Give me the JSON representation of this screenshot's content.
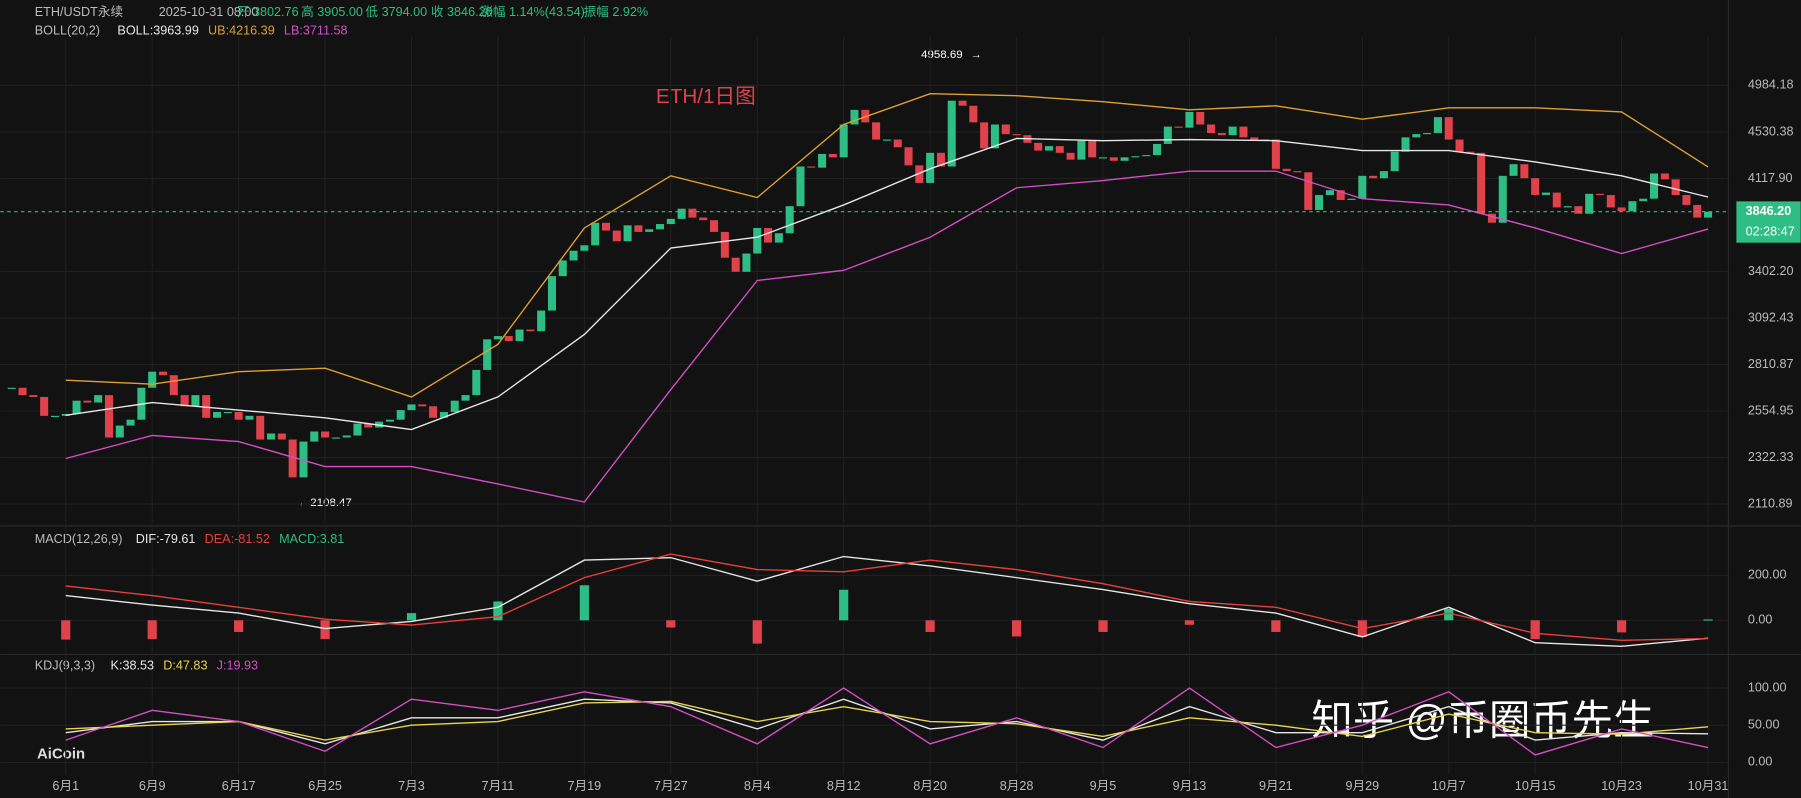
{
  "header": {
    "symbol": "ETH/USDT永续",
    "time": "2025-10-31 08:00",
    "open": "开 3802.76",
    "high": "高 3905.00",
    "low": "低 3794.00",
    "close": "收 3846.20",
    "change": "涨幅 1.14%(43.54)",
    "amplitude": "振幅 2.92%"
  },
  "watermark": "知乎 @币圈币先生",
  "brand": "AiCoin",
  "chart_data": [
    {
      "type": "candlestick",
      "title": "ETH/1日图",
      "indicator": "BOLL(20,2)",
      "high_label": "4958.69",
      "low_label": "2108.47",
      "last_price": {
        "value": 3846.2,
        "label": "3846.20"
      },
      "countdown": "02:28:47",
      "up_color": "#2ebd85",
      "down_color": "#e0424c",
      "log_scale": true,
      "grid": true,
      "ylim": [
        2033,
        5430
      ],
      "yticks": [
        4984.18,
        {
          "value": 4530.38,
          "label": "4530.38"
        },
        {
          "value": 4117.9,
          "label": "4117.90"
        },
        {
          "value": 3402.2,
          "label": "3402.20"
        },
        3092.43,
        2810.87,
        2554.95,
        2322.33,
        2110.89
      ],
      "xticks": [
        {
          "value": 5,
          "label": "6月1"
        },
        {
          "value": 13,
          "label": "6月9"
        },
        {
          "value": 21,
          "label": "6月17"
        },
        {
          "value": 29,
          "label": "6月25"
        },
        {
          "value": 37,
          "label": "7月3"
        },
        {
          "value": 45,
          "label": "7月11"
        },
        {
          "value": 53,
          "label": "7月19"
        },
        {
          "value": 61,
          "label": "7月27"
        },
        {
          "value": 69,
          "label": "8月4"
        },
        {
          "value": 77,
          "label": "8月12"
        },
        {
          "value": 85,
          "label": "8月20"
        },
        {
          "value": 93,
          "label": "8月28"
        },
        {
          "value": 101,
          "label": "9月5"
        },
        {
          "value": 109,
          "label": "9月13"
        },
        {
          "value": 117,
          "label": "9月21"
        },
        {
          "value": 125,
          "label": "9月29"
        },
        {
          "value": 133,
          "label": "10月7"
        },
        {
          "value": 141,
          "label": "10月15"
        },
        {
          "value": 149,
          "label": "10月23"
        },
        {
          "value": 157,
          "label": "10月31"
        }
      ],
      "closes": [
        2680,
        2640,
        2630,
        2530,
        2530,
        2540,
        2610,
        2600,
        2640,
        2420,
        2480,
        2510,
        2680,
        2770,
        2750,
        2640,
        2580,
        2640,
        2520,
        2550,
        2550,
        2510,
        2530,
        2410,
        2440,
        2410,
        2230,
        2400,
        2450,
        2420,
        2420,
        2430,
        2490,
        2470,
        2500,
        2510,
        2560,
        2590,
        2580,
        2520,
        2550,
        2610,
        2640,
        2780,
        2960,
        2980,
        2950,
        3020,
        3010,
        3140,
        3370,
        3480,
        3550,
        3590,
        3760,
        3700,
        3620,
        3740,
        3690,
        3710,
        3750,
        3790,
        3870,
        3800,
        3780,
        3690,
        3500,
        3400,
        3530,
        3720,
        3610,
        3680,
        3890,
        4220,
        4210,
        4330,
        4300,
        4600,
        4740,
        4620,
        4460,
        4460,
        4390,
        4230,
        4080,
        4340,
        4220,
        4830,
        4780,
        4620,
        4380,
        4600,
        4510,
        4500,
        4430,
        4360,
        4400,
        4340,
        4280,
        4450,
        4300,
        4300,
        4270,
        4300,
        4310,
        4320,
        4420,
        4580,
        4570,
        4720,
        4600,
        4520,
        4500,
        4580,
        4480,
        4450,
        4460,
        4200,
        4180,
        4170,
        3860,
        3980,
        4020,
        3940,
        3950,
        4140,
        4120,
        4180,
        4350,
        4480,
        4510,
        4520,
        4670,
        4460,
        4350,
        4340,
        3830,
        3760,
        4140,
        4240,
        4120,
        3980,
        4000,
        3880,
        3890,
        3830,
        3990,
        3980,
        3880,
        3850,
        3930,
        3950,
        4160,
        4110,
        3980,
        3900,
        3800,
        3846.2
      ],
      "series": [
        {
          "name": "BOLL:3963.99",
          "color": "#e6e6e6",
          "values": [
            2533,
            2600,
            2560,
            2520,
            2460,
            2630,
            2990,
            3570,
            3650,
            3900,
            4200,
            4470,
            4450,
            4460,
            4450,
            4360,
            4360,
            4260,
            4140,
            3963.99
          ]
        },
        {
          "name": "UB:4216.39",
          "color": "#e0a030",
          "values": [
            2722,
            2700,
            2770,
            2790,
            2630,
            2930,
            3720,
            4140,
            3960,
            4600,
            4900,
            4880,
            4820,
            4740,
            4780,
            4650,
            4760,
            4760,
            4720,
            4216.39
          ]
        },
        {
          "name": "LB:3711.58",
          "color": "#d44fc6",
          "values": [
            2318,
            2430,
            2400,
            2280,
            2280,
            2200,
            2120,
            2670,
            3340,
            3410,
            3650,
            4040,
            4100,
            4180,
            4180,
            3950,
            3900,
            3720,
            3530,
            3711.58
          ]
        }
      ]
    },
    {
      "type": "macd",
      "indicator": "MACD(12,26,9)",
      "ylim": [
        -142,
        400
      ],
      "yticks": [
        {
          "value": 200,
          "label": "200.00"
        },
        {
          "value": 0,
          "label": "0.00"
        }
      ],
      "up_color": "#2ebd85",
      "down_color": "#e0424c",
      "series": [
        {
          "name": "DIF:-79.61",
          "color": "#e6e6e6",
          "values": [
            110,
            68,
            32,
            -37,
            -5,
            58,
            268,
            279,
            174,
            284,
            242,
            190,
            137,
            74,
            32,
            -74,
            58,
            -100,
            -116,
            -79.61
          ]
        },
        {
          "name": "DEA:-81.52",
          "color": "#e8403a",
          "values": [
            153,
            110,
            58,
            5,
            -21,
            16,
            190,
            295,
            226,
            216,
            268,
            226,
            163,
            84,
            58,
            -37,
            32,
            -58,
            -89,
            -81.52
          ]
        },
        {
          "name": "MACD:3.81",
          "color": "#2ebd85",
          "values": [
            -86,
            -84,
            -52,
            -84,
            32,
            84,
            156,
            -32,
            -104,
            136,
            -52,
            -72,
            -52,
            -20,
            -52,
            -74,
            52,
            -84,
            -54,
            3.81
          ]
        }
      ]
    },
    {
      "type": "line",
      "indicator": "KDJ(9,3,3)",
      "ylim": [
        -17,
        139
      ],
      "yticks": [
        {
          "value": 100,
          "label": "100.00"
        },
        {
          "value": 50,
          "label": "50.00"
        },
        {
          "value": 0,
          "label": "0.00"
        }
      ],
      "series": [
        {
          "name": "K:38.53",
          "color": "#e6e6e6",
          "values": [
            40,
            55,
            55,
            25,
            60,
            60,
            85,
            80,
            45,
            85,
            45,
            55,
            30,
            75,
            40,
            40,
            75,
            30,
            40,
            38.53
          ]
        },
        {
          "name": "D:47.83",
          "color": "#e8d44d",
          "values": [
            45,
            50,
            55,
            30,
            50,
            55,
            80,
            82,
            55,
            75,
            55,
            52,
            35,
            60,
            50,
            35,
            65,
            40,
            38,
            47.83
          ]
        },
        {
          "name": "J:19.93",
          "color": "#d44fc6",
          "values": [
            30,
            70,
            55,
            15,
            85,
            70,
            95,
            75,
            25,
            100,
            25,
            60,
            20,
            100,
            20,
            50,
            95,
            10,
            45,
            19.93
          ]
        }
      ]
    }
  ]
}
